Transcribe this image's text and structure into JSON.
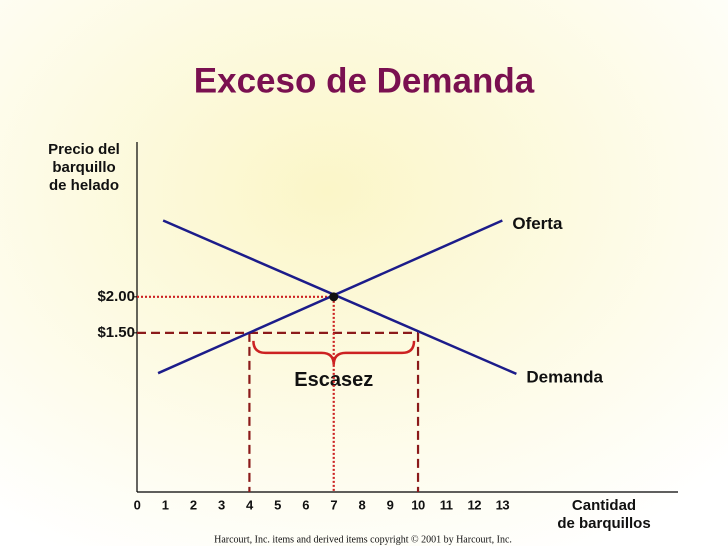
{
  "chart_data": {
    "type": "line",
    "title": "Exceso de Demanda",
    "y_label": [
      "Precio del",
      "barquillo",
      "de helado"
    ],
    "x_label": [
      "Cantidad",
      "de barquillos"
    ],
    "xlim": [
      0,
      19.25
    ],
    "ylim": [
      -0.71,
      4.15
    ],
    "xticks": [
      0,
      1,
      2,
      3,
      4,
      5,
      6,
      7,
      8,
      9,
      10,
      11,
      12,
      13
    ],
    "yticks": [
      {
        "value": 2,
        "label": "$2.00"
      },
      {
        "value": 1.5,
        "label": "$1.50"
      }
    ],
    "series": [
      {
        "name": "Oferta",
        "color": "#1c1c8a",
        "x": [
          0.75,
          13
        ],
        "values": [
          0.94,
          3.06
        ]
      },
      {
        "name": "Demanda",
        "color": "#1c1c8a",
        "x": [
          0.93,
          13.5
        ],
        "values": [
          3.06,
          0.93
        ]
      }
    ],
    "equilibrium": {
      "quantity": 7,
      "price": 2
    },
    "shortage": {
      "label": "Escasez",
      "price": 1.5,
      "quantity_supplied": 4,
      "quantity_demanded": 10
    },
    "footer": "Harcourt, Inc. items and derived items copyright © 2001 by Harcourt, Inc."
  }
}
